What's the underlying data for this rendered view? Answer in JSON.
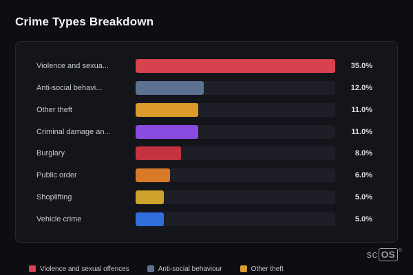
{
  "page": {
    "title": "Crime Types Breakdown"
  },
  "chart_data": {
    "type": "bar",
    "orientation": "horizontal",
    "title": "Crime Types Breakdown",
    "categories": [
      "Violence and sexua...",
      "Anti-social behavi...",
      "Other theft",
      "Criminal damage an...",
      "Burglary",
      "Public order",
      "Shoplifting",
      "Vehicle crime"
    ],
    "values": [
      35.0,
      12.0,
      11.0,
      11.0,
      8.0,
      6.0,
      5.0,
      5.0
    ],
    "value_labels": [
      "35.0%",
      "12.0%",
      "11.0%",
      "11.0%",
      "8.0%",
      "6.0%",
      "5.0%",
      "5.0%"
    ],
    "bar_colors": [
      "#d8414e",
      "#5d7190",
      "#dd9b2b",
      "#8a4be0",
      "#c43440",
      "#d87a28",
      "#cda32c",
      "#2f6fdd"
    ],
    "xlim": [
      0,
      35
    ],
    "grid": false,
    "legend_position": "bottom",
    "legend": [
      {
        "label": "Violence and sexual offences",
        "color": "#d8414e"
      },
      {
        "label": "Anti-social behaviour",
        "color": "#5d7190"
      },
      {
        "label": "Other theft",
        "color": "#dd9b2b"
      }
    ]
  },
  "branding": {
    "logo_prefix": "sc",
    "logo_box": "OS",
    "registered": "®"
  }
}
